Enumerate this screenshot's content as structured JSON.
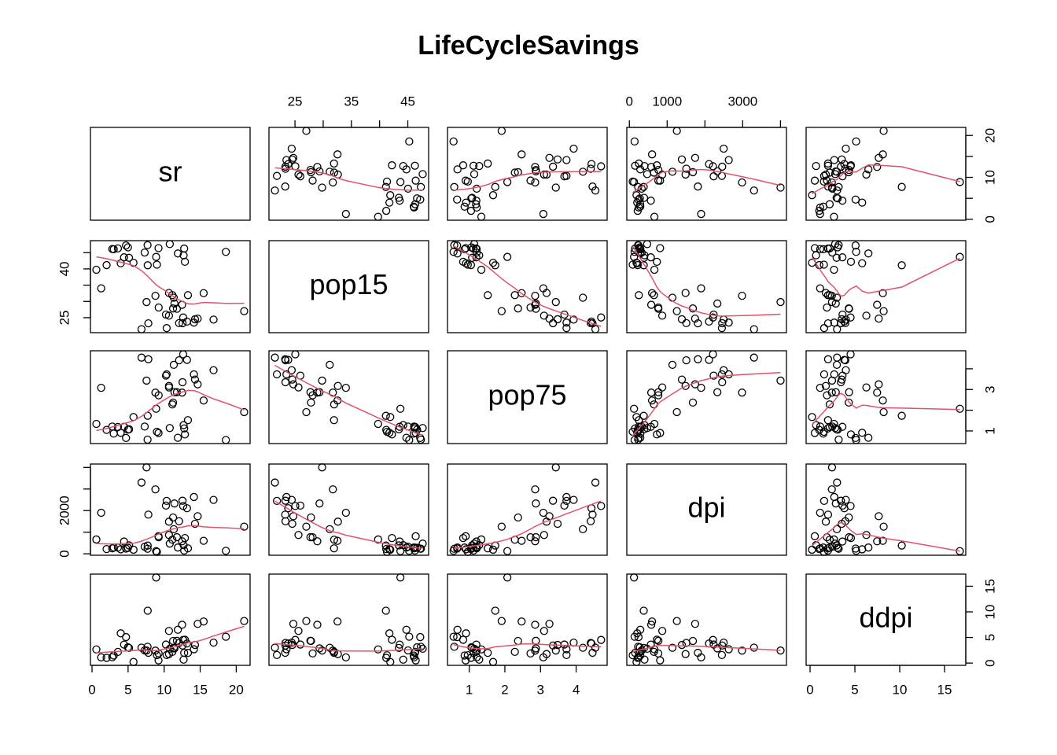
{
  "chart_data": {
    "type": "scatter_matrix",
    "title": "LifeCycleSavings",
    "smoother": true,
    "point_color": "#000000",
    "smoother_color": "#df536b",
    "variables": [
      {
        "name": "sr",
        "lim": [
          -0.22,
          21.92
        ],
        "ticks": [
          0,
          5,
          10,
          15,
          20
        ],
        "col_labels": [
          0,
          5,
          10,
          15,
          20
        ],
        "row_labels": [
          0,
          10,
          20
        ],
        "values": [
          11.43,
          12.07,
          13.17,
          5.75,
          12.88,
          8.79,
          0.6,
          11.9,
          4.98,
          10.78,
          16.85,
          3.59,
          11.24,
          12.64,
          12.55,
          10.67,
          3.01,
          7.7,
          1.27,
          9.0,
          11.34,
          14.28,
          21.1,
          3.98,
          10.35,
          15.48,
          10.25,
          14.65,
          10.67,
          7.3,
          4.44,
          2.02,
          12.7,
          12.78,
          12.49,
          11.14,
          13.3,
          11.77,
          6.86,
          14.13,
          5.13,
          2.81,
          7.81,
          7.56,
          9.22,
          18.56,
          7.72,
          9.24,
          8.89,
          4.71
        ]
      },
      {
        "name": "pop15",
        "lim": [
          20.39,
          48.69
        ],
        "ticks": [
          25,
          30,
          35,
          40,
          45
        ],
        "col_labels": [
          25,
          35,
          45
        ],
        "row_labels": [
          25,
          40
        ],
        "values": [
          29.35,
          23.32,
          23.8,
          41.89,
          42.19,
          31.72,
          39.74,
          44.75,
          46.64,
          47.64,
          24.42,
          46.31,
          27.84,
          25.06,
          23.31,
          25.62,
          46.05,
          47.32,
          34.03,
          41.31,
          31.16,
          24.52,
          27.01,
          41.74,
          21.8,
          32.54,
          25.95,
          24.71,
          32.61,
          45.04,
          43.56,
          41.18,
          44.19,
          46.26,
          28.96,
          31.94,
          31.92,
          27.74,
          21.44,
          23.49,
          43.42,
          46.12,
          23.27,
          29.81,
          46.4,
          45.25,
          41.12,
          28.13,
          43.69,
          47.2
        ]
      },
      {
        "name": "pop75",
        "lim": [
          0.39,
          4.87
        ],
        "ticks": [
          1,
          2,
          3,
          4
        ],
        "col_labels": [
          1,
          2,
          3,
          4
        ],
        "row_labels": [
          1,
          3
        ],
        "values": [
          2.87,
          4.41,
          4.43,
          1.67,
          0.83,
          2.85,
          1.34,
          0.67,
          1.06,
          1.14,
          3.93,
          1.19,
          2.37,
          4.7,
          3.35,
          3.1,
          0.87,
          0.58,
          3.08,
          0.96,
          4.19,
          3.48,
          1.91,
          0.91,
          3.73,
          2.47,
          3.67,
          3.25,
          3.17,
          1.21,
          1.2,
          1.05,
          1.28,
          1.12,
          2.85,
          2.28,
          1.52,
          2.87,
          4.54,
          3.73,
          1.08,
          1.21,
          4.46,
          3.43,
          0.9,
          0.56,
          1.73,
          2.72,
          2.07,
          0.66
        ]
      },
      {
        "name": "dpi",
        "lim": [
          -67.6,
          4158.4
        ],
        "ticks": [
          0,
          1000,
          2000,
          3000,
          4000
        ],
        "col_labels": [
          0,
          1000,
          3000
        ],
        "row_labels": [
          0,
          2000
        ],
        "values": [
          2329.68,
          1507.99,
          2108.47,
          189.13,
          728.47,
          2982.88,
          662.86,
          289.52,
          276.65,
          471.24,
          2496.53,
          287.77,
          1681.25,
          2213.82,
          2457.12,
          870.85,
          289.71,
          232.44,
          1900.1,
          88.94,
          1139.95,
          1390.0,
          1257.28,
          207.68,
          2449.39,
          601.05,
          2231.03,
          1740.7,
          1487.52,
          325.54,
          568.56,
          220.56,
          400.06,
          152.01,
          579.51,
          651.11,
          250.96,
          768.79,
          3299.49,
          2630.96,
          389.66,
          249.87,
          1813.93,
          4001.89,
          813.39,
          138.33,
          380.47,
          766.54,
          123.58,
          242.69
        ]
      },
      {
        "name": "ddpi",
        "lim": [
          -0.44,
          17.37
        ],
        "ticks": [
          0,
          5,
          10,
          15
        ],
        "col_labels": [
          0,
          5,
          10,
          15
        ],
        "row_labels": [
          0,
          5,
          10,
          15
        ],
        "values": [
          2.87,
          3.93,
          3.82,
          0.22,
          4.56,
          2.43,
          2.67,
          6.51,
          3.08,
          2.8,
          3.99,
          2.19,
          4.32,
          4.52,
          3.44,
          6.28,
          1.48,
          3.19,
          1.12,
          1.54,
          2.99,
          3.54,
          8.21,
          5.81,
          1.57,
          8.12,
          3.62,
          7.66,
          1.76,
          2.48,
          3.61,
          1.03,
          0.67,
          2.0,
          7.48,
          2.19,
          2.0,
          4.35,
          3.01,
          2.7,
          2.96,
          1.13,
          2.01,
          2.45,
          0.53,
          5.14,
          10.23,
          1.88,
          16.71,
          5.08
        ]
      }
    ]
  }
}
